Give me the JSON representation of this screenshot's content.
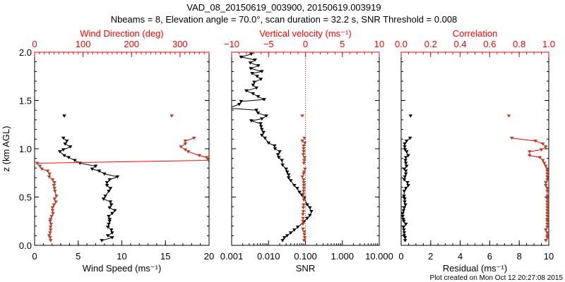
{
  "title": "VAD_08_20150619_003900, 20150619.003919",
  "subtitle": "Nbeams = 8, Elevation angle = 70.0°, scan duration = 32.2 s, SNR Threshold = 0.008",
  "ylabel": "z (km AGL)",
  "footer": "Plot created on Mon Oct 12 20:27:08 2015",
  "colors": {
    "axis_top": "#ff0000",
    "primary": "#000000",
    "secondary": "#b5432a",
    "line2": "#ff0000"
  },
  "chart_data": {
    "type": "line",
    "y_axis": {
      "range": [
        0,
        2
      ],
      "ticks": [
        0,
        0.5,
        1,
        1.5,
        2
      ],
      "tick_labels": [
        "0.0",
        "0.5",
        "1.0",
        "1.5",
        "2.0"
      ],
      "minor_step": 0.1
    },
    "panels": [
      {
        "name": "wind",
        "bottom": {
          "label": "Wind Speed (ms⁻¹)",
          "range": [
            0,
            20
          ],
          "scale": "linear",
          "ticks": [
            0,
            5,
            10,
            15,
            20
          ],
          "tick_labels": [
            "0",
            "5",
            "10",
            "15",
            "20"
          ],
          "minor_step": 1
        },
        "top": {
          "label": "Wind Direction (deg)",
          "range": [
            0,
            360
          ],
          "scale": "linear",
          "ticks": [
            0,
            100,
            200,
            300
          ],
          "tick_labels": [
            "0",
            "100",
            "200",
            "300"
          ],
          "minor_step": 10
        },
        "series": [
          {
            "name": "Wind Speed",
            "axis": "bottom",
            "color": "#000000",
            "line": true,
            "z": [
              1.34,
              1.11,
              1.08,
              1.05,
              1.02,
              0.99,
              0.97,
              0.93,
              0.91,
              0.88,
              0.85,
              0.82,
              0.79,
              0.77,
              0.74,
              0.71,
              0.68,
              0.65,
              0.62,
              0.59,
              0.56,
              0.51,
              0.48,
              0.45,
              0.42,
              0.39,
              0.36,
              0.33,
              0.3,
              0.27,
              0.25,
              0.22,
              0.19,
              0.16,
              0.13,
              0.1,
              0.08,
              0.05
            ],
            "values": [
              3.4,
              3.3,
              3.7,
              3.5,
              4.1,
              3.3,
              2.9,
              3.4,
              3.9,
              4.6,
              5.2,
              7.0,
              6.6,
              7.4,
              8.0,
              9.5,
              8.6,
              8.3,
              8.3,
              8.7,
              8.5,
              8.1,
              7.9,
              8.7,
              8.8,
              8.6,
              9.2,
              8.9,
              8.5,
              8.6,
              8.6,
              8.5,
              8.4,
              8.8,
              8.9,
              8.4,
              8.9,
              7.7
            ]
          },
          {
            "name": "Wind Direction",
            "axis": "top",
            "color": "#b5432a",
            "line": true,
            "line_color": "#ff0000",
            "z": [
              1.34,
              1.11,
              1.08,
              1.05,
              1.02,
              0.99,
              0.97,
              0.93,
              0.91,
              0.88,
              0.85,
              0.82,
              0.79,
              0.77,
              0.74,
              0.71,
              0.68,
              0.65,
              0.62,
              0.59,
              0.56,
              0.51,
              0.48,
              0.45,
              0.42,
              0.39,
              0.36,
              0.33,
              0.3,
              0.27,
              0.25,
              0.22,
              0.19,
              0.16,
              0.13,
              0.1,
              0.08,
              0.05
            ],
            "values": [
              283,
              329,
              311,
              311,
              302,
              311,
              317,
              340,
              355,
              359,
              5,
              11,
              15,
              27,
              31,
              30,
              37,
              41,
              40,
              41,
              42,
              45,
              41,
              44,
              40,
              37,
              37,
              38,
              35,
              33,
              32,
              34,
              33,
              33,
              32,
              30,
              32,
              33
            ]
          }
        ]
      },
      {
        "name": "snr-vv",
        "bottom": {
          "label": "SNR",
          "range": [
            0.001,
            10
          ],
          "scale": "log",
          "ticks": [
            0.001,
            0.01,
            0.1,
            1,
            10
          ],
          "tick_labels": [
            "0.001",
            "0.010",
            "0.100",
            "1.000",
            "10.000"
          ]
        },
        "top": {
          "label": "Vertical velocity (ms⁻¹)",
          "range": [
            -10,
            10
          ],
          "scale": "linear",
          "ticks": [
            -10,
            -5,
            0,
            5,
            10
          ],
          "tick_labels": [
            "−10",
            "−5",
            "0",
            "5",
            "10"
          ],
          "minor_step": 1
        },
        "zero_line": {
          "axis": "top",
          "value": 0
        },
        "series": [
          {
            "name": "SNR",
            "axis": "bottom",
            "color": "#000000",
            "line": true,
            "z": [
              1.98,
              1.95,
              1.92,
              1.89,
              1.86,
              1.83,
              1.8,
              1.78,
              1.75,
              1.72,
              1.69,
              1.66,
              1.63,
              1.6,
              1.57,
              1.54,
              1.51,
              1.49,
              1.46,
              1.42,
              1.4,
              1.37,
              1.34,
              1.31,
              1.29,
              1.26,
              1.23,
              1.2,
              1.17,
              1.14,
              1.11,
              1.06,
              1.03,
              1.0,
              0.97,
              0.94,
              0.91,
              0.88,
              0.83,
              0.79,
              0.76,
              0.73,
              0.7,
              0.67,
              0.62,
              0.59,
              0.55,
              0.52,
              0.49,
              0.42,
              0.39,
              0.35,
              0.31,
              0.28,
              0.24,
              0.19,
              0.16,
              0.13,
              0.1,
              0.08,
              0.05
            ],
            "values": [
              0.0034,
              0.0018,
              0.0043,
              0.0032,
              0.0053,
              0.0033,
              0.0066,
              0.0036,
              0.0049,
              0.0062,
              0.0041,
              0.0038,
              0.0047,
              0.0025,
              0.0038,
              0.0052,
              0.0076,
              0.0018,
              0.0016,
              0.0008,
              0.0047,
              0.0052,
              0.0087,
              0.0066,
              0.0034,
              0.0061,
              0.0063,
              0.0066,
              0.0073,
              0.0066,
              0.008,
              0.01,
              0.0146,
              0.015,
              0.02,
              0.018,
              0.019,
              0.023,
              0.024,
              0.03,
              0.032,
              0.035,
              0.035,
              0.04,
              0.05,
              0.06,
              0.069,
              0.08,
              0.093,
              0.112,
              0.132,
              0.145,
              0.132,
              0.112,
              0.089,
              0.062,
              0.05,
              0.04,
              0.032,
              0.027,
              0.024
            ]
          },
          {
            "name": "Vertical velocity",
            "axis": "top",
            "color": "#b5432a",
            "line": false,
            "z": [
              1.34,
              1.11,
              1.08,
              1.06,
              1.03,
              1.0,
              0.97,
              0.94,
              0.91,
              0.88,
              0.85,
              0.79,
              0.76,
              0.74,
              0.71,
              0.68,
              0.65,
              0.62,
              0.59,
              0.56,
              0.53,
              0.5,
              0.47,
              0.42,
              0.39,
              0.35,
              0.32,
              0.28,
              0.25,
              0.22,
              0.17,
              0.14,
              0.11,
              0.08,
              0.05
            ],
            "values": [
              -0.42,
              -0.14,
              -0.42,
              -0.1,
              -0.23,
              -0.25,
              -0.24,
              -0.29,
              -0.13,
              -0.18,
              -0.21,
              -0.06,
              -0.18,
              -0.25,
              -0.42,
              -0.25,
              -0.22,
              -0.22,
              -0.22,
              -0.25,
              -0.29,
              -0.25,
              -0.22,
              -0.25,
              -0.29,
              -0.29,
              -0.34,
              -0.32,
              -0.32,
              -0.35,
              -0.34,
              -0.18,
              -0.14,
              -0.1,
              -0.18
            ]
          }
        ]
      },
      {
        "name": "residual-correlation",
        "bottom": {
          "label": "Residual (ms⁻¹)",
          "range": [
            0,
            10
          ],
          "scale": "linear",
          "ticks": [
            0,
            2,
            4,
            6,
            8,
            10
          ],
          "tick_labels": [
            "0",
            "2",
            "4",
            "6",
            "8",
            "10"
          ],
          "minor_step": 0.5
        },
        "top": {
          "label": "Correlation",
          "range": [
            0,
            1
          ],
          "scale": "linear",
          "ticks": [
            0,
            0.2,
            0.4,
            0.6,
            0.8,
            1.0
          ],
          "tick_labels": [
            "0.0",
            "0.2",
            "0.4",
            "0.6",
            "0.8",
            "1.0"
          ],
          "minor_step": 0.05
        },
        "series": [
          {
            "name": "Residual",
            "axis": "bottom",
            "color": "#000000",
            "line": true,
            "z": [
              1.34,
              1.11,
              1.08,
              1.05,
              1.02,
              0.99,
              0.97,
              0.93,
              0.91,
              0.88,
              0.85,
              0.82,
              0.79,
              0.77,
              0.74,
              0.71,
              0.68,
              0.65,
              0.62,
              0.59,
              0.56,
              0.51,
              0.48,
              0.45,
              0.42,
              0.39,
              0.36,
              0.33,
              0.3,
              0.27,
              0.25,
              0.22,
              0.19,
              0.16,
              0.13,
              0.1,
              0.08,
              0.05
            ],
            "values": [
              0.64,
              0.61,
              0.37,
              0.24,
              0.24,
              0.27,
              0.37,
              0.48,
              0.32,
              0.29,
              0.32,
              0.37,
              0.21,
              0.32,
              0.32,
              0.25,
              0.21,
              0.43,
              0.48,
              0.32,
              0.21,
              0.19,
              0.24,
              0.24,
              0.29,
              0.21,
              0.16,
              0.11,
              0.11,
              0.15,
              0.18,
              0.32,
              0.16,
              0.19,
              0.21,
              0.21,
              0.27,
              0.27
            ]
          },
          {
            "name": "Correlation",
            "axis": "top",
            "color": "#b5432a",
            "line": true,
            "line_color": "#ff0000",
            "z": [
              1.34,
              1.11,
              1.08,
              1.05,
              1.02,
              0.99,
              0.97,
              0.93,
              0.91,
              0.88,
              0.85,
              0.82,
              0.79,
              0.77,
              0.74,
              0.71,
              0.68,
              0.65,
              0.62,
              0.59,
              0.56,
              0.51,
              0.48,
              0.45,
              0.42,
              0.39,
              0.36,
              0.33,
              0.3,
              0.27,
              0.25,
              0.22,
              0.19,
              0.16,
              0.13,
              0.1,
              0.08,
              0.05
            ],
            "values": [
              0.73,
              0.75,
              0.91,
              0.96,
              0.98,
              0.95,
              0.87,
              0.87,
              0.94,
              0.96,
              0.97,
              0.98,
              0.99,
              0.99,
              0.99,
              0.99,
              0.99,
              0.98,
              0.98,
              0.99,
              0.99,
              0.99,
              0.99,
              0.99,
              0.99,
              0.99,
              0.99,
              0.99,
              0.99,
              0.99,
              0.99,
              0.99,
              0.99,
              0.98,
              0.99,
              0.99,
              0.99,
              0.98
            ]
          }
        ]
      }
    ]
  }
}
